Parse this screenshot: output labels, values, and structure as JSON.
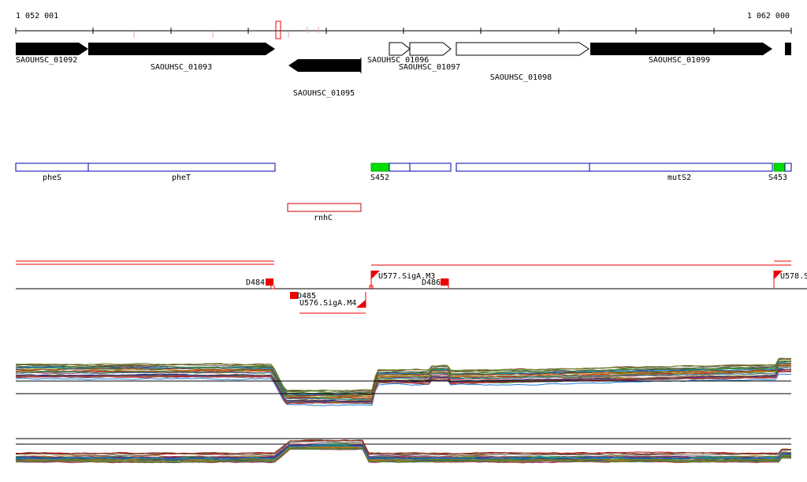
{
  "ruler": {
    "start_label": "1 052 001",
    "end_label": "1 062 000"
  },
  "colors": {
    "black": "#000000",
    "blue": "#0000aa",
    "red": "#ee0000",
    "green": "#00dd00",
    "salmon": "#f0a0a0"
  },
  "genes": [
    {
      "id": "SAOUHSC_01092",
      "label": "SAOUHSC_01092",
      "strand": "+",
      "fill": "black"
    },
    {
      "id": "SAOUHSC_01093",
      "label": "SAOUHSC_01093",
      "strand": "+",
      "fill": "black"
    },
    {
      "id": "SAOUHSC_01095",
      "label": "SAOUHSC_01095",
      "strand": "-",
      "fill": "black"
    },
    {
      "id": "SAOUHSC_01096",
      "label": "SAOUHSC_01096",
      "strand": "+",
      "fill": "white"
    },
    {
      "id": "SAOUHSC_01097",
      "label": "SAOUHSC_01097",
      "strand": "+",
      "fill": "white"
    },
    {
      "id": "SAOUHSC_01098",
      "label": "SAOUHSC_01098",
      "strand": "+",
      "fill": "white"
    },
    {
      "id": "SAOUHSC_01099",
      "label": "SAOUHSC_01099",
      "strand": "+",
      "fill": "black"
    }
  ],
  "features": [
    {
      "label": "pheS"
    },
    {
      "label": "pheT"
    },
    {
      "label": "S452"
    },
    {
      "label": "mutS2"
    },
    {
      "label": "S453"
    },
    {
      "label": "rnhC"
    }
  ],
  "segments": [
    {
      "label": "D484"
    },
    {
      "label": "D485"
    },
    {
      "label": "U576.SigA.M4"
    },
    {
      "label": "U577.SigA.M3"
    },
    {
      "label": "D486"
    },
    {
      "label": "U578.S"
    }
  ]
}
